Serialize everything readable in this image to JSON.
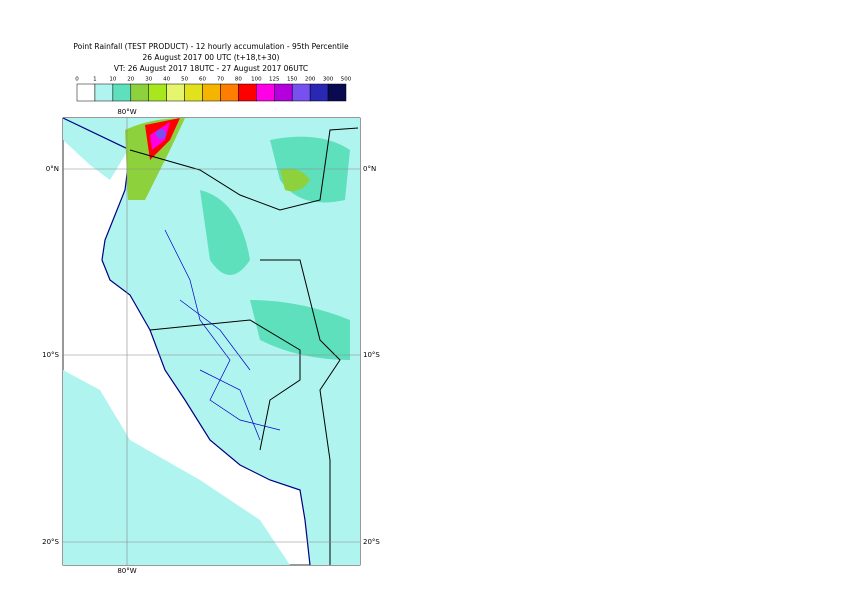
{
  "header": {
    "lines": [
      "Point Rainfall (TEST PRODUCT) - 12 hourly accumulation - 95th Percentile",
      "26 August 2017 00 UTC (t+18,t+30)",
      "VT: 26 August 2017 18UTC - 27 August 2017 06UTC"
    ]
  },
  "legend": {
    "labels": [
      "0",
      "1",
      "10",
      "20",
      "30",
      "40",
      "50",
      "60",
      "70",
      "80",
      "100",
      "125",
      "150",
      "200",
      "300",
      "500"
    ],
    "colors": [
      "#ffffff",
      "#b0f4f0",
      "#5fe0bc",
      "#8dd23c",
      "#a8e61e",
      "#e6f56e",
      "#e1e11e",
      "#f5b400",
      "#ff7d00",
      "#ff0000",
      "#ff00e6",
      "#b400dc",
      "#7850f0",
      "#2828b4",
      "#0a0a50"
    ]
  },
  "map": {
    "lon_labels": [
      "80°W",
      "80°W"
    ],
    "lat_labels": [
      "0°N",
      "10°S",
      "20°S",
      "0°N",
      "10°S",
      "20°S"
    ]
  }
}
